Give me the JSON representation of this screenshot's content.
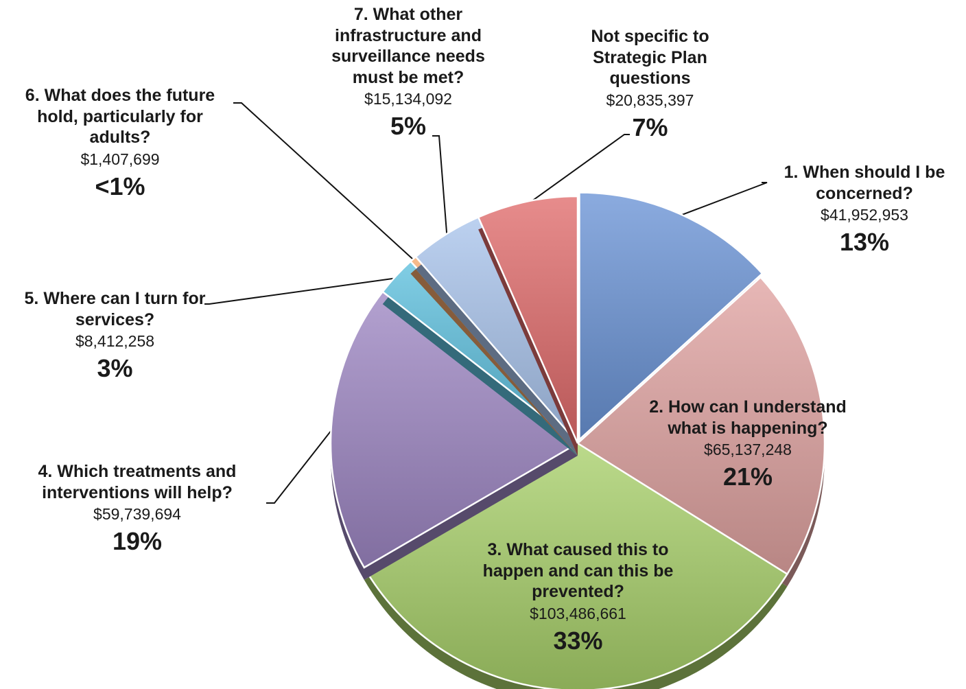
{
  "chart_data": {
    "type": "pie",
    "slices": [
      {
        "label": "1. When should I be concerned?",
        "amount": "$41,952,953",
        "percent": "13%",
        "value": 41952953,
        "color": "#6a93d6"
      },
      {
        "label": "2. How can I understand what is happening?",
        "amount": "$65,137,248",
        "percent": "21%",
        "value": 65137248,
        "color": "#e0a3a1"
      },
      {
        "label": "3. What caused this to happen and can this be prevented?",
        "amount": "$103,486,661",
        "percent": "33%",
        "value": 103486661,
        "color": "#a8d06a"
      },
      {
        "label": "4. Which treatments and interventions will help?",
        "amount": "$59,739,694",
        "percent": "19%",
        "value": 59739694,
        "color": "#9d86c3"
      },
      {
        "label": "5. Where can I turn for services?",
        "amount": "$8,412,258",
        "percent": "3%",
        "value": 8412258,
        "color": "#5ec0de"
      },
      {
        "label": "6. What does the future hold, particularly for adults?",
        "amount": "$1,407,699",
        "percent": "<1%",
        "value": 1407699,
        "color": "#f3a86c"
      },
      {
        "label": "7. What other infrastructure and surveillance needs must be met?",
        "amount": "$15,134,092",
        "percent": "5%",
        "value": 15134092,
        "color": "#a9c4ec"
      },
      {
        "label": "Not specific to Strategic Plan questions",
        "amount": "$20,835,397",
        "percent": "7%",
        "value": 20835397,
        "color": "#e06b6b"
      }
    ]
  }
}
